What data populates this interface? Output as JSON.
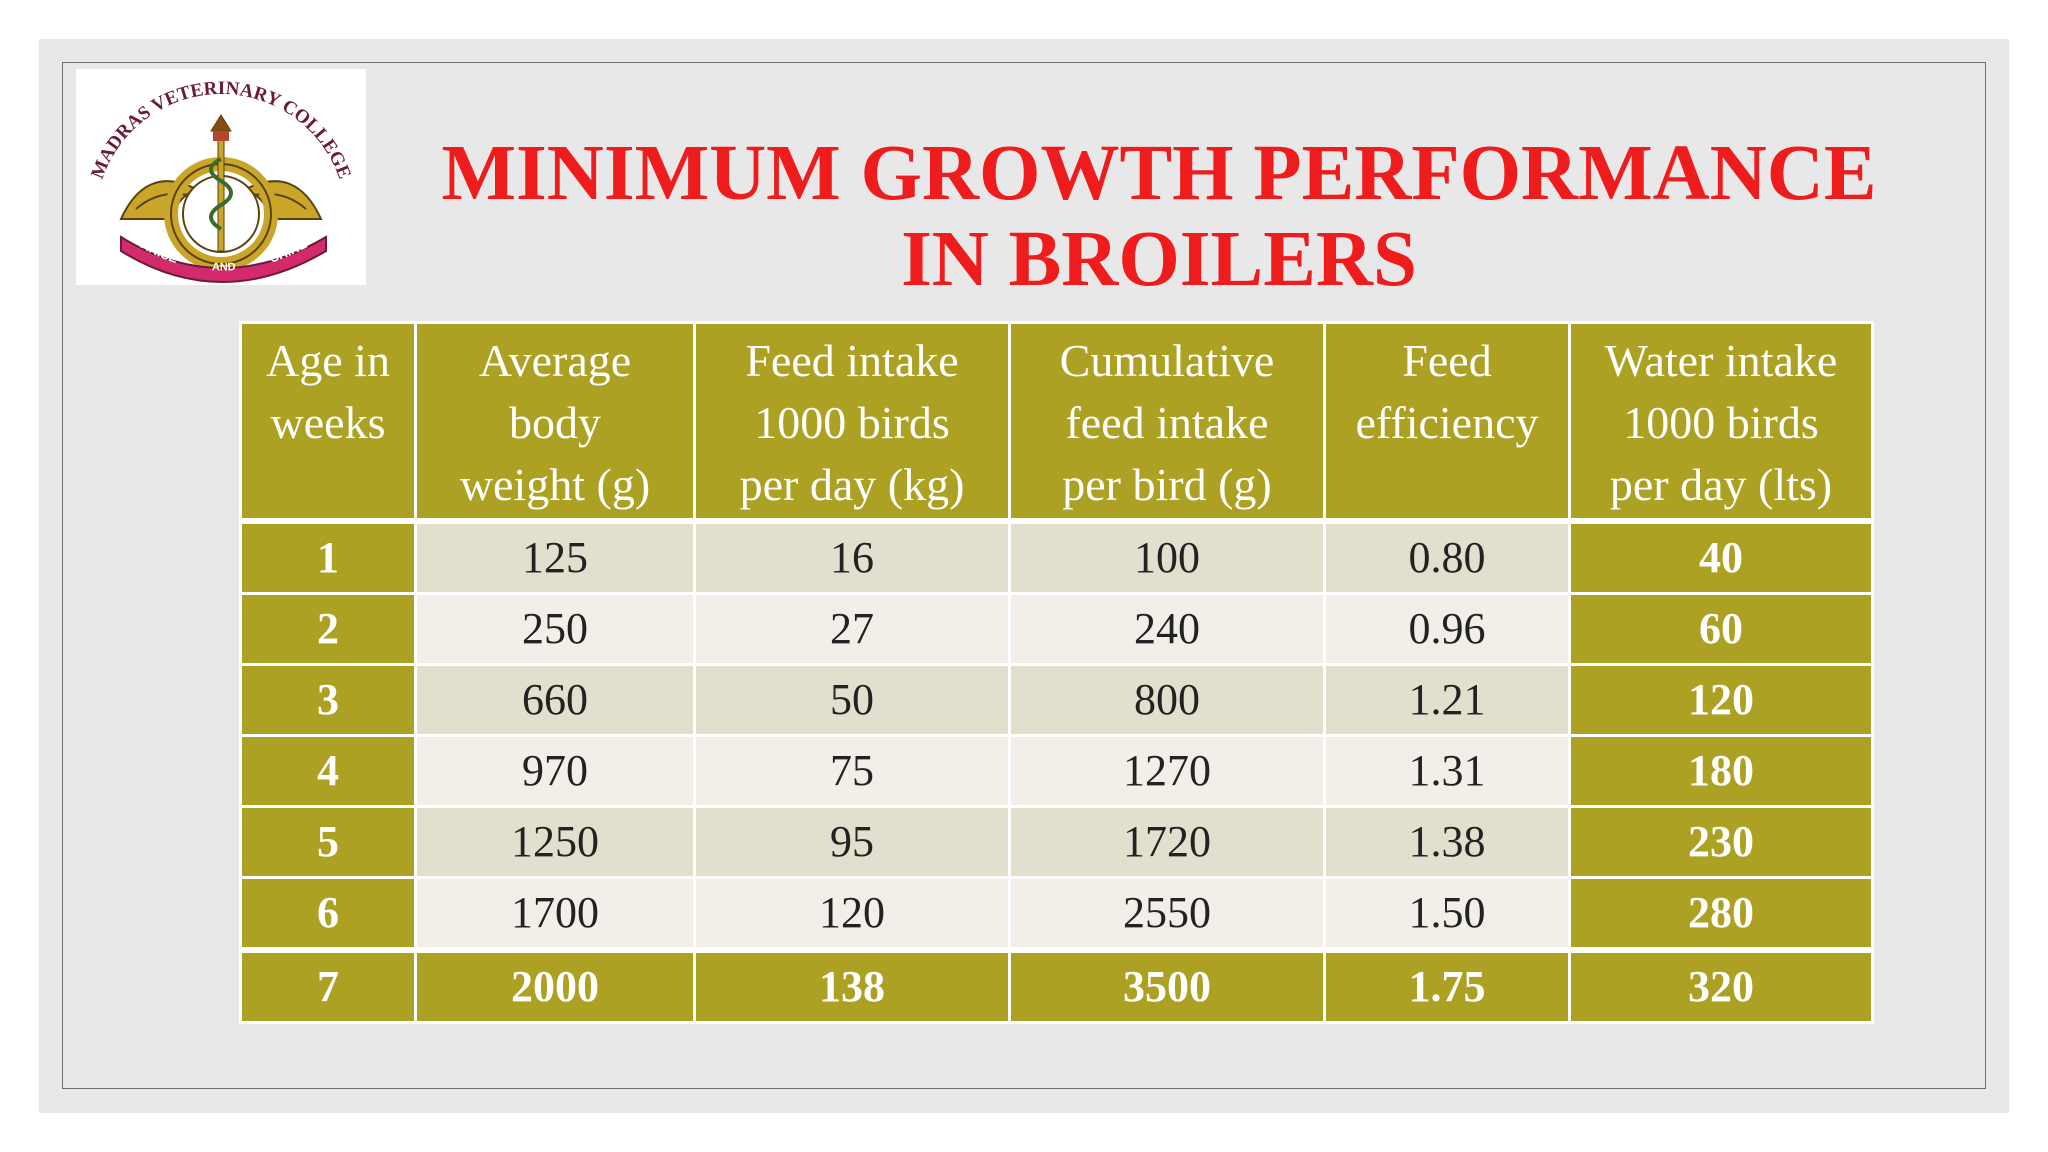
{
  "logo": {
    "text_top": "MADRAS VETERINARY COLLEGE",
    "motto": [
      "ARISE",
      "AND",
      "SHINE"
    ]
  },
  "title": {
    "line1": "MINIMUM GROWTH PERFORMANCE",
    "line2": "IN BROILERS"
  },
  "colors": {
    "title": "#ee1c1c",
    "header_olive": "#aca122",
    "row_light": "#f1efe7",
    "row_mid": "#e2dfce"
  },
  "table": {
    "headers": [
      [
        "Age in",
        "weeks"
      ],
      [
        "Average",
        "body",
        "weight (g)"
      ],
      [
        "Feed intake",
        "1000 birds",
        "per day (kg)"
      ],
      [
        "Cumulative",
        "feed intake",
        "per bird (g)"
      ],
      [
        "Feed",
        "efficiency"
      ],
      [
        "Water intake",
        "1000 birds",
        "per day (lts)"
      ]
    ],
    "rows": [
      [
        "1",
        "125",
        "16",
        "100",
        "0.80",
        "40"
      ],
      [
        "2",
        "250",
        "27",
        "240",
        "0.96",
        "60"
      ],
      [
        "3",
        "660",
        "50",
        "800",
        "1.21",
        "120"
      ],
      [
        "4",
        "970",
        "75",
        "1270",
        "1.31",
        "180"
      ],
      [
        "5",
        "1250",
        "95",
        "1720",
        "1.38",
        "230"
      ],
      [
        "6",
        "1700",
        "120",
        "2550",
        "1.50",
        "280"
      ],
      [
        "7",
        "2000",
        "138",
        "3500",
        "1.75",
        "320"
      ]
    ]
  }
}
